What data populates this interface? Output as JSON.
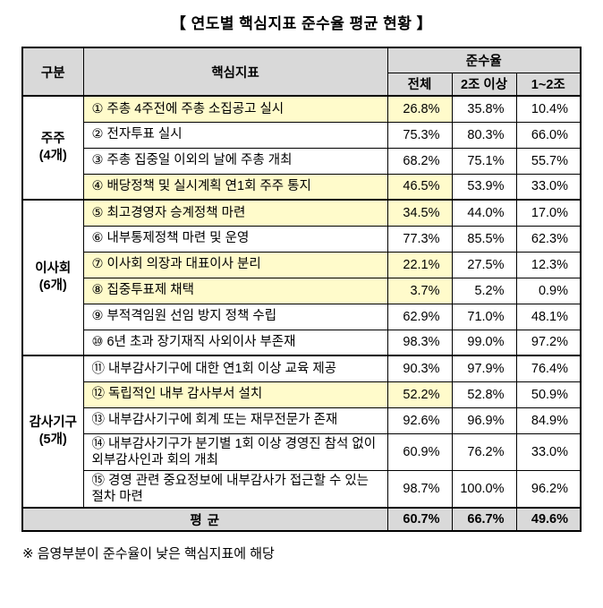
{
  "title": "【 연도별 핵심지표 준수율 평균 현황 】",
  "colors": {
    "header-bg": "#d9d9d9",
    "highlight": "#fffbcb"
  },
  "table": {
    "headers": {
      "category": "구분",
      "indicator": "핵심지표",
      "compliance": "준수율",
      "total": "전체",
      "over2": "2조 이상",
      "range12": "1~2조"
    },
    "groups": [
      {
        "name": "주주",
        "count": "(4개)",
        "rows": [
          {
            "label": "① 주총 4주전에 주총 소집공고 실시",
            "total": "26.8%",
            "over2": "35.8%",
            "range12": "10.4%",
            "highlight": true
          },
          {
            "label": "② 전자투표 실시",
            "total": "75.3%",
            "over2": "80.3%",
            "range12": "66.0%",
            "highlight": false
          },
          {
            "label": "③ 주총 집중일 이외의 날에 주총 개최",
            "total": "68.2%",
            "over2": "75.1%",
            "range12": "55.7%",
            "highlight": false
          },
          {
            "label": "④ 배당정책 및 실시계획 연1회 주주 통지",
            "total": "46.5%",
            "over2": "53.9%",
            "range12": "33.0%",
            "highlight": true
          }
        ]
      },
      {
        "name": "이사회",
        "count": "(6개)",
        "rows": [
          {
            "label": "⑤ 최고경영자 승계정책 마련",
            "total": "34.5%",
            "over2": "44.0%",
            "range12": "17.0%",
            "highlight": true
          },
          {
            "label": "⑥ 내부통제정책 마련 및 운영",
            "total": "77.3%",
            "over2": "85.5%",
            "range12": "62.3%",
            "highlight": false
          },
          {
            "label": "⑦ 이사회 의장과 대표이사 분리",
            "total": "22.1%",
            "over2": "27.5%",
            "range12": "12.3%",
            "highlight": true
          },
          {
            "label": "⑧ 집중투표제 채택",
            "total": "3.7%",
            "over2": "5.2%",
            "range12": "0.9%",
            "highlight": true
          },
          {
            "label": "⑨ 부적격임원 선임 방지 정책 수립",
            "total": "62.9%",
            "over2": "71.0%",
            "range12": "48.1%",
            "highlight": false
          },
          {
            "label": "⑩ 6년 초과 장기재직 사외이사 부존재",
            "total": "98.3%",
            "over2": "99.0%",
            "range12": "97.2%",
            "highlight": false
          }
        ]
      },
      {
        "name": "감사기구",
        "count": "(5개)",
        "rows": [
          {
            "label": "⑪ 내부감사기구에 대한 연1회 이상 교육 제공",
            "total": "90.3%",
            "over2": "97.9%",
            "range12": "76.4%",
            "highlight": false
          },
          {
            "label": "⑫ 독립적인 내부 감사부서 설치",
            "total": "52.2%",
            "over2": "52.8%",
            "range12": "50.9%",
            "highlight": true
          },
          {
            "label": "⑬ 내부감사기구에 회계 또는 재무전문가 존재",
            "total": "92.6%",
            "over2": "96.9%",
            "range12": "84.9%",
            "highlight": false
          },
          {
            "label": "⑭ 내부감사기구가 분기별 1회 이상 경영진 참석 없이 외부감사인과 회의 개최",
            "total": "60.9%",
            "over2": "76.2%",
            "range12": "33.0%",
            "highlight": false
          },
          {
            "label": "⑮ 경영 관련 중요정보에 내부감사가 접근할 수 있는 절차 마련",
            "total": "98.7%",
            "over2": "100.0%",
            "range12": "96.2%",
            "highlight": false
          }
        ]
      }
    ],
    "average": {
      "label": "평 균",
      "total": "60.7%",
      "over2": "66.7%",
      "range12": "49.6%"
    }
  },
  "footnote": "※ 음영부분이 준수율이 낮은 핵심지표에 해당"
}
